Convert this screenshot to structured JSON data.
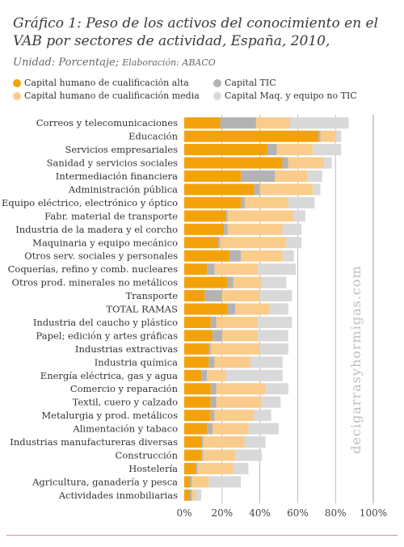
{
  "header": {
    "title": "Gráfico 1: Peso de los activos del conocimiento en el VAB por sectores de actividad, España, 2010,",
    "unit": "Unidad: Porcentaje;",
    "source": "Elaboración: ABACO"
  },
  "watermark": "decigarrasyhormigas.com",
  "colors": {
    "alta": "#f4a20a",
    "tic": "#b3b3b3",
    "media": "#f9cc8c",
    "noTIC": "#d9d9d9",
    "refline": "#c9a0a0"
  },
  "chart_data": {
    "type": "bar",
    "orientation": "horizontal",
    "stacked": true,
    "categories": [
      "Correos y telecomunicaciones",
      "Educación",
      "Servicios empresariales",
      "Sanidad y servicios sociales",
      "Intermediación financiera",
      "Administración pública",
      "Equipo eléctrico, electrónico y óptico",
      "Fabr. material de transporte",
      "Industria de la madera y el corcho",
      "Maquinaria y equipo mecánico",
      "Otros serv. sociales y  personales",
      "Coquerías, refino y comb. nucleares",
      "Otros prod. minerales no metálicos",
      "Transporte",
      "TOTAL RAMAS",
      "Industria del caucho y plástico",
      "Papel; edición y artes gráficas",
      "Industrias extractivas",
      "Industria química",
      "Energía eléctrica, gas y agua",
      "Comercio y reparación",
      "Textil, cuero y calzado",
      "Metalurgia y  prod. metálicos",
      "Alimentación y tabaco",
      "Industrias manufactureras diversas",
      "Construcción",
      "Hostelería",
      "Agricultura, ganadería y pesca",
      "Actividades inmobiliarias"
    ],
    "series": [
      {
        "name": "Capital humano de cualificación alta",
        "key": "alta",
        "values": [
          19,
          71,
          44,
          52,
          30,
          37,
          30,
          22,
          21,
          18,
          24,
          12,
          23,
          11,
          23,
          14,
          15,
          13,
          13,
          9,
          14,
          14,
          14,
          12,
          9,
          9,
          6,
          3,
          3
        ]
      },
      {
        "name": "Capital TIC",
        "key": "tic",
        "values": [
          19,
          1,
          5,
          3,
          18,
          3,
          2,
          1,
          2,
          1,
          6,
          4,
          3,
          9,
          4,
          3,
          5,
          1,
          3,
          3,
          3,
          3,
          2,
          3,
          1,
          1,
          1,
          1,
          1
        ]
      },
      {
        "name": "Capital humano de cualificación media",
        "key": "media",
        "values": [
          18,
          8,
          19,
          19,
          17,
          28,
          23,
          35,
          29,
          35,
          22,
          23,
          15,
          20,
          18,
          22,
          19,
          26,
          19,
          10,
          26,
          24,
          21,
          19,
          22,
          17,
          19,
          9,
          2
        ]
      },
      {
        "name": "Capital Maq. y equipo no TIC",
        "key": "noTIC",
        "values": [
          31,
          3,
          15,
          4,
          8,
          4,
          14,
          6,
          10,
          8,
          6,
          20,
          13,
          17,
          10,
          18,
          16,
          15,
          17,
          30,
          12,
          10,
          9,
          16,
          11,
          14,
          8,
          17,
          3
        ]
      }
    ],
    "legend": {
      "position": "top",
      "columns": [
        [
          "Capital humano de cualificación alta",
          "Capital humano de cualificación media"
        ],
        [
          "Capital TIC",
          "Capital Maq. y equipo no TIC"
        ]
      ]
    },
    "xlim": [
      0,
      100
    ],
    "xticks": [
      0,
      20,
      40,
      60,
      80,
      100
    ],
    "xtick_labels": [
      "0%",
      "20%",
      "40%",
      "60%",
      "80%",
      "100%"
    ],
    "grid": "vertical"
  }
}
